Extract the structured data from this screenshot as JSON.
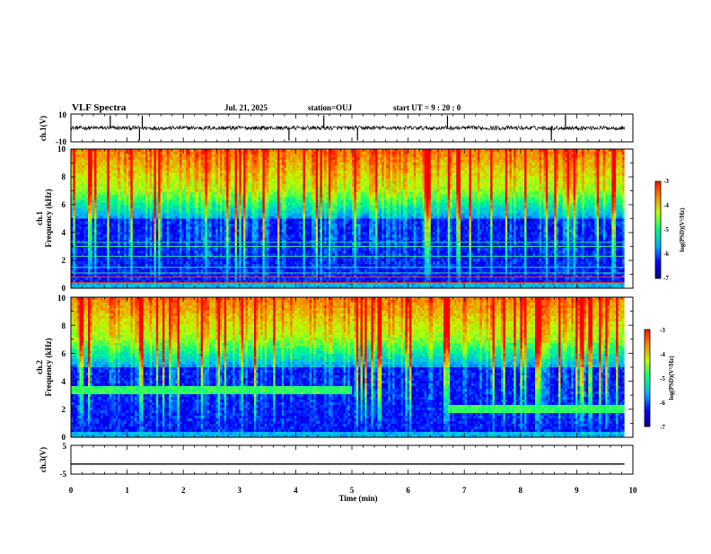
{
  "header": {
    "title": "VLF Spectra",
    "date": "Jul. 21, 2025",
    "station": "station=OUJ",
    "start": "start UT =  9 : 20 : 0"
  },
  "chart_data": [
    {
      "type": "line",
      "id": "ch1_waveform",
      "ylabel": "ch.1(V)",
      "ylim": [
        -10,
        10
      ],
      "y_ticks": [
        "10",
        "-10"
      ],
      "xlim": [
        0,
        10
      ],
      "series": [
        {
          "baseline": 0,
          "noise_amplitude": 1.5,
          "spike_x": [
            0.7,
            1.22,
            1.27,
            3.88,
            4.5,
            5.1,
            6.7,
            8.55,
            8.8
          ]
        }
      ]
    },
    {
      "type": "heatmap",
      "id": "ch1_spectrogram",
      "ylabel": "ch.1\nFrequency (kHz)",
      "ylabel_parts": [
        "ch.1",
        "Frequency (kHz)"
      ],
      "ylim": [
        0,
        10
      ],
      "y_ticks": [
        "0",
        "2",
        "4",
        "6",
        "8",
        "10"
      ],
      "xlim": [
        0,
        9.85
      ],
      "colorbar": {
        "label": "log(PSD)(V²/Hz)",
        "range": [
          -7,
          -3
        ],
        "ticks": [
          "-3",
          "-4",
          "-5",
          "-6",
          "-7"
        ]
      },
      "bands_khz": [
        0.4,
        0.8,
        1.1,
        1.5,
        2.3,
        3.0,
        3.3
      ]
    },
    {
      "type": "heatmap",
      "id": "ch2_spectrogram",
      "ylabel_parts": [
        "ch.2",
        "Frequency (kHz)"
      ],
      "ylim": [
        0,
        10
      ],
      "y_ticks": [
        "0",
        "2",
        "4",
        "6",
        "8",
        "10"
      ],
      "xlim": [
        0,
        9.85
      ],
      "colorbar": {
        "label": "log(PSD)(V²/Hz)",
        "range": [
          -7,
          -3
        ],
        "ticks": [
          "-3",
          "-4",
          "-5",
          "-6",
          "-7"
        ]
      },
      "emission": [
        {
          "x_range": [
            0,
            5.0
          ],
          "freq_khz": 3.4
        },
        {
          "x_range": [
            6.7,
            9.85
          ],
          "freq_khz": 2.0
        }
      ]
    },
    {
      "type": "line",
      "id": "ch3_waveform",
      "ylabel": "ch.3(V)",
      "ylim": [
        -5,
        5
      ],
      "y_ticks": [
        "5",
        "-5"
      ],
      "xlim": [
        0,
        10
      ],
      "series": [
        {
          "constant": -1.5
        }
      ]
    }
  ],
  "x_axis": {
    "label": "Time (min)",
    "ticks": [
      "0",
      "1",
      "2",
      "3",
      "4",
      "5",
      "6",
      "7",
      "8",
      "9",
      "10"
    ]
  },
  "colors": {
    "colormap": [
      "#000088",
      "#0000ff",
      "#00b0ff",
      "#00ff80",
      "#c0ff00",
      "#ff8000",
      "#ff0000",
      "#ffffff"
    ]
  }
}
